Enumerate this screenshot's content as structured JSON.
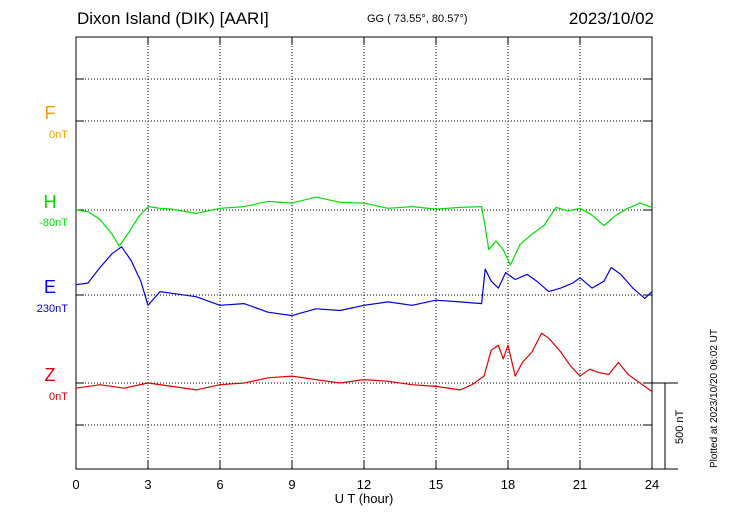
{
  "header": {
    "station": "Dixon Island (DIK)  [AARI]",
    "coords": "GG ( 73.55°,  80.57°)",
    "date": "2023/10/02"
  },
  "plotted_note": "Plotted at 2023/10/20 06:02 UT",
  "scale_label": "500 nT",
  "chart_data": {
    "type": "line",
    "xlabel": "U T (hour)",
    "xlim": [
      0,
      24
    ],
    "xticks": [
      0,
      3,
      6,
      9,
      12,
      15,
      18,
      21,
      24
    ],
    "grid": true,
    "scale_bar_nT": 500,
    "series": [
      {
        "name": "F",
        "baseline_label": "0nT",
        "color": "#f0a000",
        "points": []
      },
      {
        "name": "H",
        "baseline_label": "-80nT",
        "color": "#00e000",
        "points": [
          [
            0,
            0
          ],
          [
            0.5,
            -10
          ],
          [
            1,
            -55
          ],
          [
            1.5,
            -140
          ],
          [
            1.8,
            -210
          ],
          [
            2.2,
            -130
          ],
          [
            2.6,
            -40
          ],
          [
            3,
            20
          ],
          [
            3.5,
            10
          ],
          [
            4,
            5
          ],
          [
            5,
            -20
          ],
          [
            6,
            10
          ],
          [
            7,
            20
          ],
          [
            8,
            50
          ],
          [
            9,
            40
          ],
          [
            10,
            75
          ],
          [
            11,
            45
          ],
          [
            12,
            40
          ],
          [
            13,
            10
          ],
          [
            14,
            20
          ],
          [
            15,
            5
          ],
          [
            16,
            15
          ],
          [
            16.9,
            20
          ],
          [
            17.05,
            -100
          ],
          [
            17.2,
            -230
          ],
          [
            17.5,
            -180
          ],
          [
            17.8,
            -230
          ],
          [
            18.1,
            -320
          ],
          [
            18.5,
            -200
          ],
          [
            19,
            -140
          ],
          [
            19.5,
            -90
          ],
          [
            20,
            15
          ],
          [
            20.5,
            -5
          ],
          [
            21,
            10
          ],
          [
            21.5,
            -30
          ],
          [
            22,
            -90
          ],
          [
            22.5,
            -30
          ],
          [
            23,
            10
          ],
          [
            23.5,
            40
          ],
          [
            24,
            15
          ]
        ]
      },
      {
        "name": "E",
        "baseline_label": "230nT",
        "color": "#0000e0",
        "points": [
          [
            0,
            60
          ],
          [
            0.5,
            70
          ],
          [
            1,
            160
          ],
          [
            1.5,
            240
          ],
          [
            1.9,
            280
          ],
          [
            2.3,
            200
          ],
          [
            2.7,
            80
          ],
          [
            3,
            -60
          ],
          [
            3.5,
            20
          ],
          [
            4,
            10
          ],
          [
            5,
            -10
          ],
          [
            6,
            -60
          ],
          [
            7,
            -50
          ],
          [
            8,
            -100
          ],
          [
            9,
            -120
          ],
          [
            10,
            -80
          ],
          [
            11,
            -90
          ],
          [
            12,
            -60
          ],
          [
            13,
            -40
          ],
          [
            14,
            -60
          ],
          [
            15,
            -30
          ],
          [
            16,
            -40
          ],
          [
            16.9,
            -50
          ],
          [
            17.05,
            150
          ],
          [
            17.3,
            80
          ],
          [
            17.6,
            40
          ],
          [
            17.9,
            130
          ],
          [
            18.3,
            90
          ],
          [
            18.8,
            120
          ],
          [
            19.2,
            80
          ],
          [
            19.7,
            20
          ],
          [
            20.2,
            40
          ],
          [
            20.7,
            70
          ],
          [
            21,
            100
          ],
          [
            21.5,
            40
          ],
          [
            22,
            80
          ],
          [
            22.3,
            160
          ],
          [
            22.7,
            120
          ],
          [
            23.2,
            40
          ],
          [
            23.7,
            -20
          ],
          [
            24,
            20
          ]
        ]
      },
      {
        "name": "Z",
        "baseline_label": "0nT",
        "color": "#e00000",
        "points": [
          [
            0,
            -30
          ],
          [
            1,
            -10
          ],
          [
            2,
            -30
          ],
          [
            3,
            0
          ],
          [
            4,
            -20
          ],
          [
            5,
            -40
          ],
          [
            6,
            -10
          ],
          [
            7,
            0
          ],
          [
            8,
            30
          ],
          [
            9,
            40
          ],
          [
            10,
            20
          ],
          [
            11,
            0
          ],
          [
            12,
            20
          ],
          [
            13,
            10
          ],
          [
            14,
            -10
          ],
          [
            15,
            -20
          ],
          [
            16,
            -40
          ],
          [
            16.5,
            -10
          ],
          [
            17,
            40
          ],
          [
            17.3,
            190
          ],
          [
            17.6,
            220
          ],
          [
            17.8,
            140
          ],
          [
            18,
            220
          ],
          [
            18.3,
            40
          ],
          [
            18.6,
            120
          ],
          [
            19,
            180
          ],
          [
            19.4,
            290
          ],
          [
            19.7,
            260
          ],
          [
            20.2,
            180
          ],
          [
            20.6,
            100
          ],
          [
            21,
            40
          ],
          [
            21.4,
            80
          ],
          [
            21.8,
            60
          ],
          [
            22.2,
            50
          ],
          [
            22.6,
            120
          ],
          [
            23,
            50
          ],
          [
            23.5,
            0
          ],
          [
            24,
            -50
          ]
        ]
      }
    ]
  }
}
